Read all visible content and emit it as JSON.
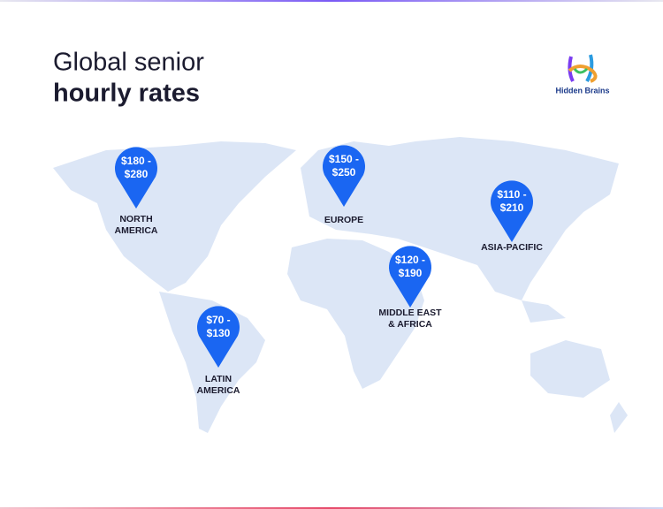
{
  "header": {
    "title": [
      "Global senior",
      "hourly rates"
    ],
    "logo": "Hidden Brains"
  },
  "regions": [
    {
      "rate": [
        "$180 -",
        "$280"
      ],
      "label": [
        "NORTH",
        "AMERICA"
      ]
    },
    {
      "rate": [
        "$150 -",
        "$250"
      ],
      "label": [
        "EUROPE"
      ]
    },
    {
      "rate": [
        "$110 -",
        "$210"
      ],
      "label": [
        "ASIA-PACIFIC"
      ]
    },
    {
      "rate": [
        "$120 -",
        "$190"
      ],
      "label": [
        "MIDDLE EAST",
        "& AFRICA"
      ]
    },
    {
      "rate": [
        "$70 -",
        "$130"
      ],
      "label": [
        "LATIN",
        "AMERICA"
      ]
    }
  ]
}
